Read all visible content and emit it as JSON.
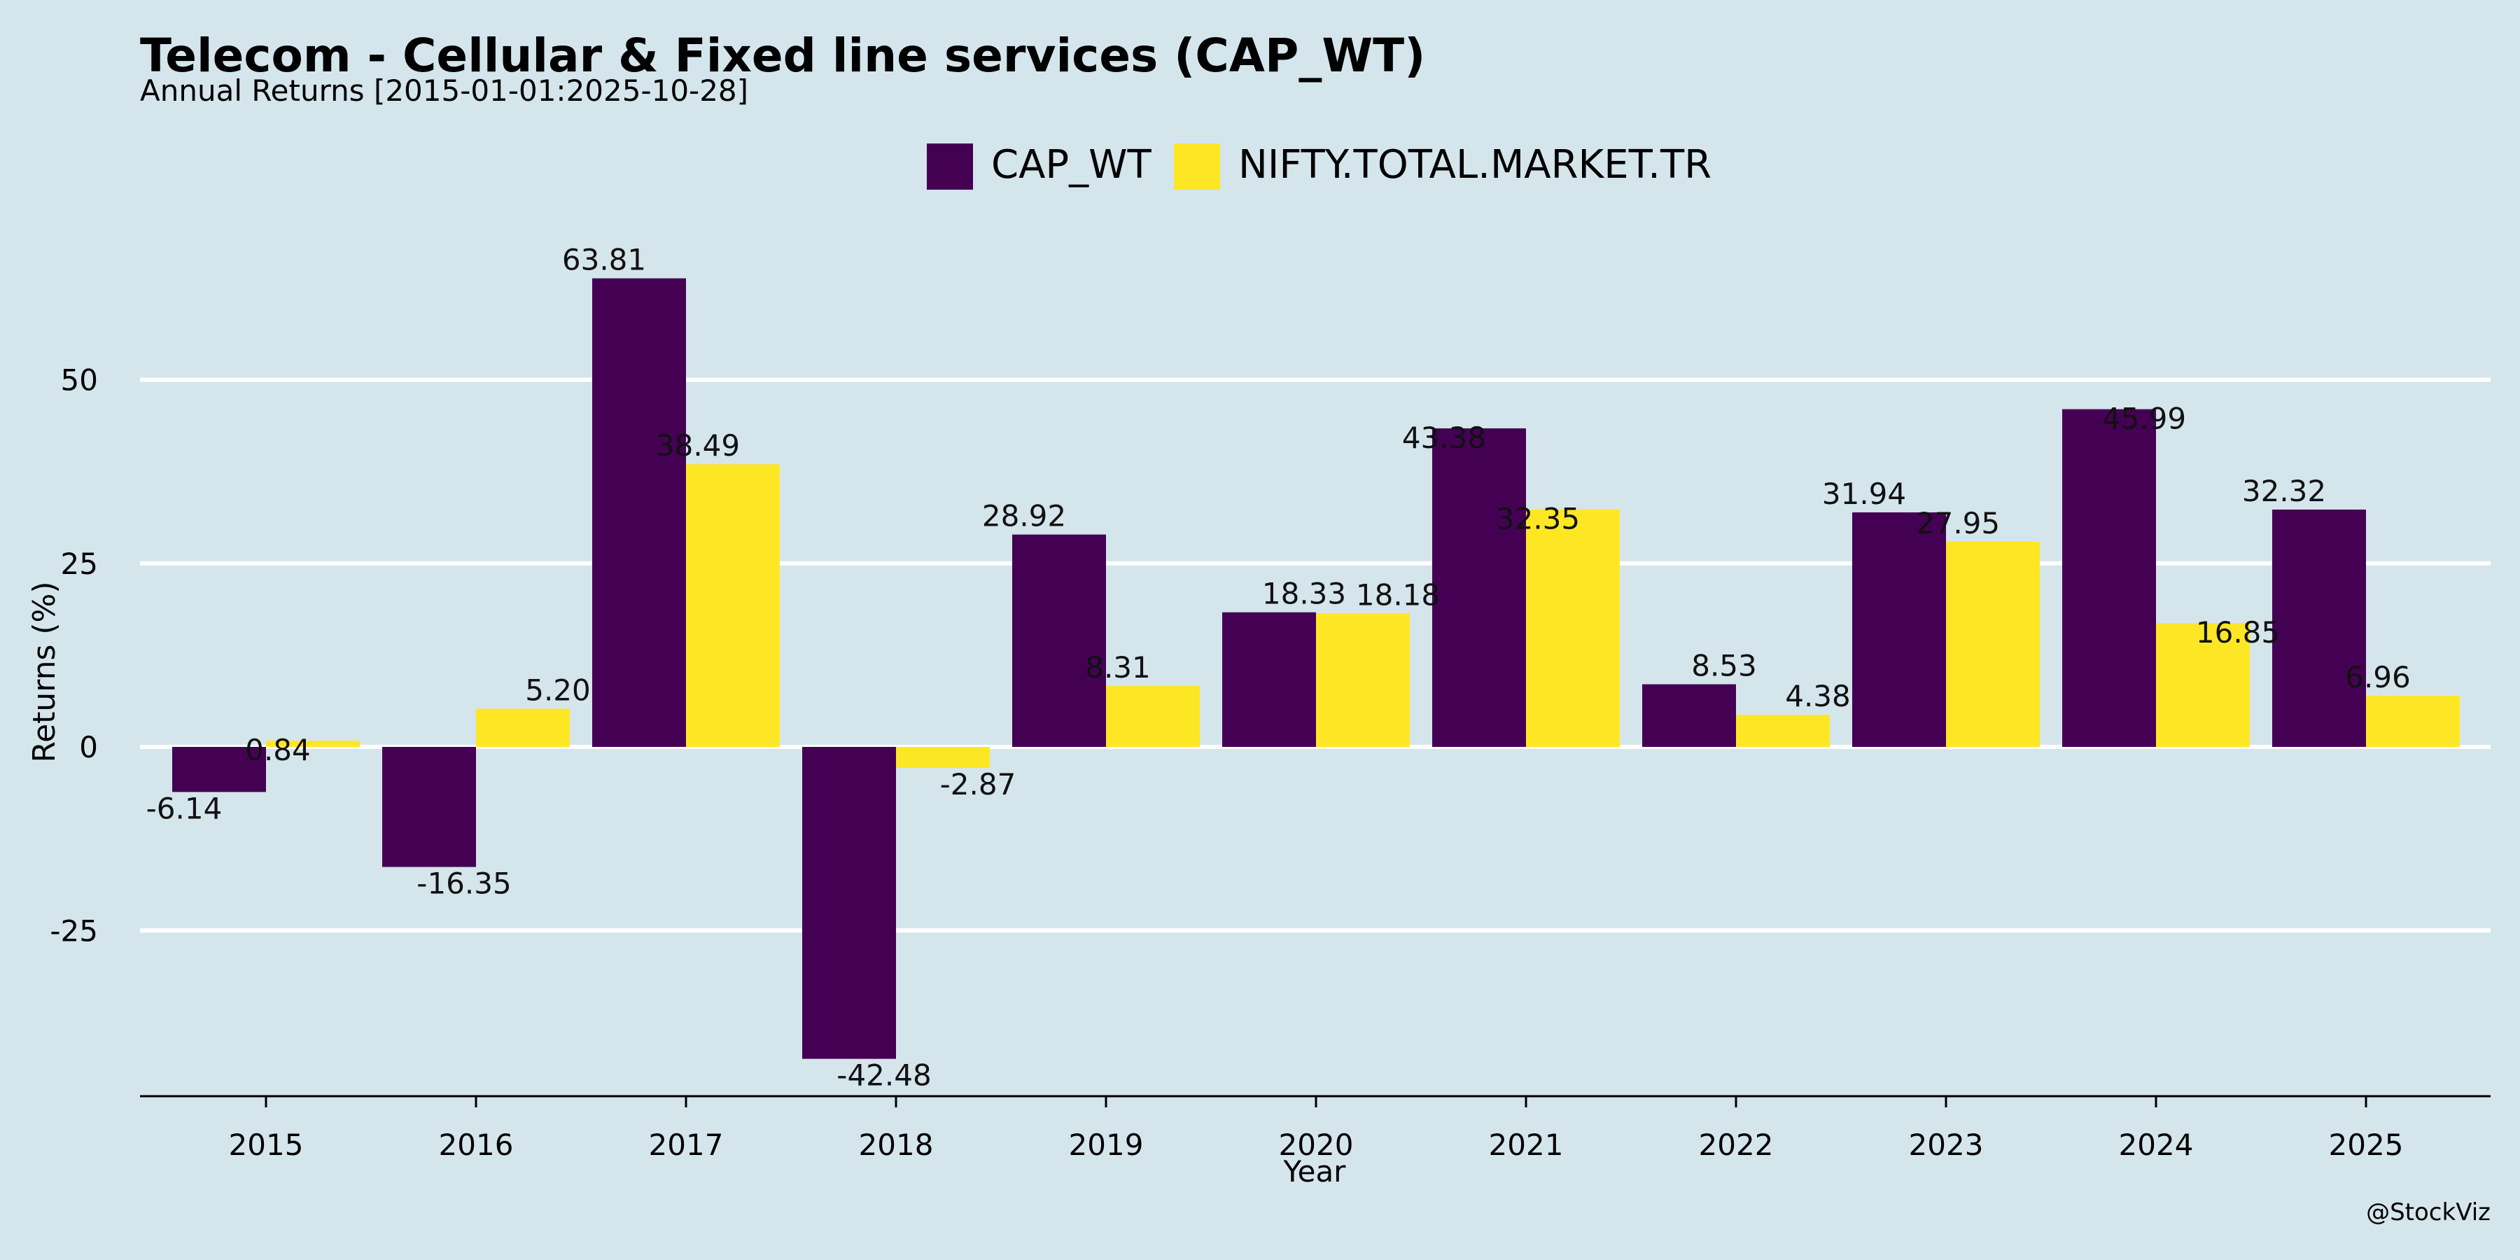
{
  "chart_data": {
    "type": "bar",
    "title": "Telecom - Cellular & Fixed line services (CAP_WT)",
    "subtitle": "Annual Returns [2015-01-01:2025-10-28]",
    "xlabel": "Year",
    "ylabel": "Returns (%)",
    "categories": [
      "2015",
      "2016",
      "2017",
      "2018",
      "2019",
      "2020",
      "2021",
      "2022",
      "2023",
      "2024",
      "2025"
    ],
    "series": [
      {
        "name": "CAP_WT",
        "color": "#440154",
        "values": [
          -6.14,
          -16.35,
          63.81,
          -42.48,
          28.92,
          18.33,
          43.38,
          8.53,
          31.94,
          45.99,
          32.32
        ],
        "labels": [
          "-6.14",
          "-16.35",
          "63.81",
          "-42.48",
          "28.92",
          "18.33",
          "43.38",
          "8.53",
          "31.94",
          "45.99",
          "32.32"
        ]
      },
      {
        "name": "NIFTY.TOTAL.MARKET.TR",
        "color": "#fde725",
        "values": [
          0.84,
          5.2,
          38.49,
          -2.87,
          8.31,
          18.18,
          32.35,
          4.38,
          27.95,
          16.85,
          6.96
        ],
        "labels": [
          "0.84",
          "5.20",
          "38.49",
          "-2.87",
          "8.31",
          "18.18",
          "32.35",
          "4.38",
          "27.95",
          "16.85",
          "6.96"
        ]
      }
    ],
    "yticks": [
      -25,
      0,
      25,
      50
    ],
    "ylim": [
      -48,
      70
    ],
    "grid": true,
    "legend": "top-center",
    "caption": "@StockViz"
  }
}
